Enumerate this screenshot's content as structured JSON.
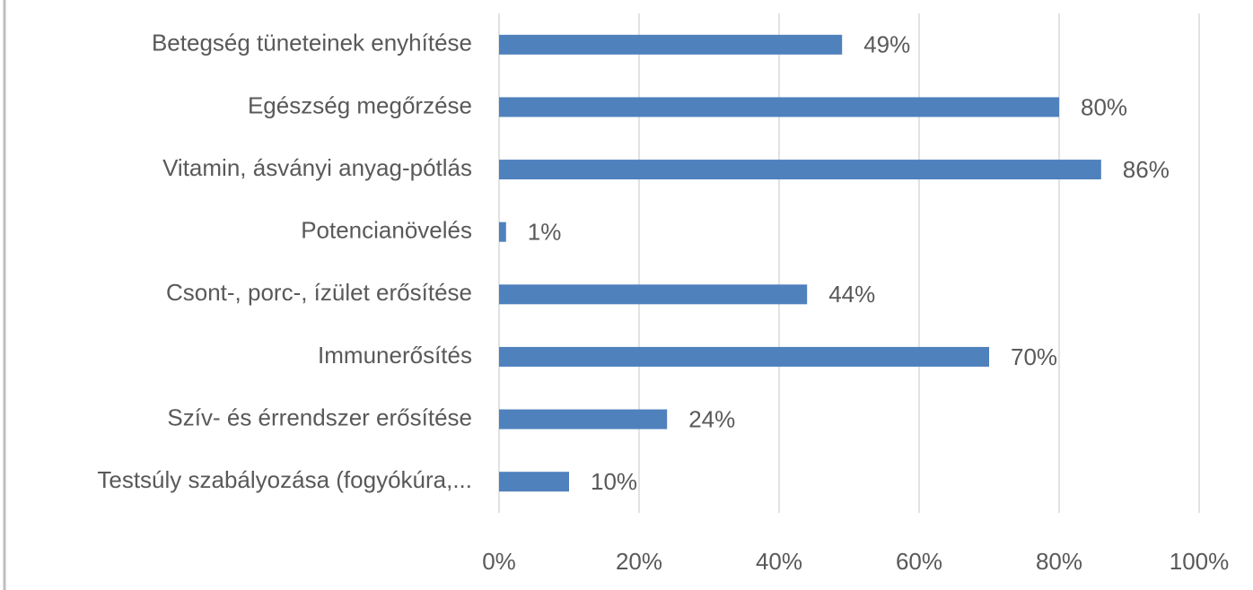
{
  "chart_data": {
    "type": "bar",
    "orientation": "horizontal",
    "categories": [
      "Betegség tüneteinek enyhítése",
      "Egészség megőrzése",
      "Vitamin, ásványi anyag-pótlás",
      "Potencianövelés",
      "Csont-, porc-, ízület erősítése",
      "Immunerősítés",
      "Szív- és érrendszer erősítése",
      "Testsúly szabályozása (fogyókúra,..."
    ],
    "values": [
      49,
      80,
      86,
      1,
      44,
      70,
      24,
      10
    ],
    "value_labels": [
      "49%",
      "80%",
      "86%",
      "1%",
      "44%",
      "70%",
      "24%",
      "10%"
    ],
    "color": "#4f81bd",
    "xlim": [
      0,
      100
    ],
    "xticks": [
      {
        "value": 0,
        "label": "0%"
      },
      {
        "value": 20,
        "label": "20%"
      },
      {
        "value": 40,
        "label": "40%"
      },
      {
        "value": 60,
        "label": "60%"
      },
      {
        "value": 80,
        "label": "80%"
      },
      {
        "value": 100,
        "label": "100%"
      }
    ],
    "grid": true
  }
}
